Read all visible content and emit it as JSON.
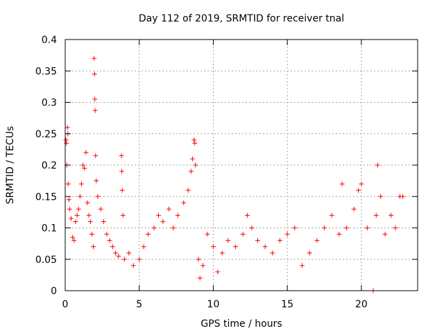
{
  "chart_data": {
    "type": "scatter",
    "title": "Day 112 of 2019, SRMTID for receiver tnal",
    "xlabel": "GPS time / hours",
    "ylabel": "SRMTID / TECUs",
    "xlim": [
      0,
      23.8
    ],
    "ylim": [
      0,
      0.4
    ],
    "x_ticks": [
      0,
      5,
      10,
      15,
      20
    ],
    "x_tick_labels": [
      "0",
      "5",
      "10",
      "15",
      "20"
    ],
    "y_ticks": [
      0,
      0.05,
      0.1,
      0.15,
      0.2,
      0.25,
      0.3,
      0.35,
      0.4
    ],
    "y_tick_labels": [
      "0",
      "0.05",
      "0.1",
      "0.15",
      "0.2",
      "0.25",
      "0.3",
      "0.35",
      "0.4"
    ],
    "grid": true,
    "legend": "none",
    "marker": "plus",
    "color": "#ff0000",
    "series": [
      {
        "values": [
          [
            0.05,
            0.24
          ],
          [
            0.08,
            0.235
          ],
          [
            0.1,
            0.2
          ],
          [
            0.15,
            0.26
          ],
          [
            0.18,
            0.25
          ],
          [
            0.2,
            0.17
          ],
          [
            0.25,
            0.145
          ],
          [
            0.3,
            0.13
          ],
          [
            0.4,
            0.115
          ],
          [
            0.5,
            0.085
          ],
          [
            0.6,
            0.08
          ],
          [
            0.7,
            0.11
          ],
          [
            0.8,
            0.12
          ],
          [
            0.9,
            0.13
          ],
          [
            1.0,
            0.15
          ],
          [
            1.1,
            0.17
          ],
          [
            1.2,
            0.2
          ],
          [
            1.3,
            0.195
          ],
          [
            1.4,
            0.22
          ],
          [
            1.5,
            0.14
          ],
          [
            1.6,
            0.12
          ],
          [
            1.7,
            0.11
          ],
          [
            1.8,
            0.09
          ],
          [
            1.9,
            0.07
          ],
          [
            1.95,
            0.37
          ],
          [
            1.98,
            0.345
          ],
          [
            2.0,
            0.305
          ],
          [
            2.02,
            0.287
          ],
          [
            2.05,
            0.215
          ],
          [
            2.1,
            0.175
          ],
          [
            2.2,
            0.15
          ],
          [
            2.4,
            0.13
          ],
          [
            2.6,
            0.11
          ],
          [
            2.8,
            0.09
          ],
          [
            3.0,
            0.08
          ],
          [
            3.2,
            0.07
          ],
          [
            3.4,
            0.06
          ],
          [
            3.6,
            0.055
          ],
          [
            3.8,
            0.215
          ],
          [
            3.82,
            0.19
          ],
          [
            3.85,
            0.16
          ],
          [
            3.9,
            0.12
          ],
          [
            4.0,
            0.05
          ],
          [
            4.3,
            0.06
          ],
          [
            4.6,
            0.04
          ],
          [
            5.0,
            0.05
          ],
          [
            5.3,
            0.07
          ],
          [
            5.6,
            0.09
          ],
          [
            6.0,
            0.1
          ],
          [
            6.3,
            0.12
          ],
          [
            6.6,
            0.11
          ],
          [
            7.0,
            0.13
          ],
          [
            7.3,
            0.1
          ],
          [
            7.6,
            0.12
          ],
          [
            8.0,
            0.14
          ],
          [
            8.3,
            0.16
          ],
          [
            8.5,
            0.19
          ],
          [
            8.6,
            0.21
          ],
          [
            8.7,
            0.24
          ],
          [
            8.75,
            0.235
          ],
          [
            8.8,
            0.2
          ],
          [
            9.0,
            0.05
          ],
          [
            9.1,
            0.02
          ],
          [
            9.3,
            0.04
          ],
          [
            9.6,
            0.09
          ],
          [
            10.0,
            0.07
          ],
          [
            10.3,
            0.03
          ],
          [
            10.6,
            0.06
          ],
          [
            11.0,
            0.08
          ],
          [
            11.5,
            0.07
          ],
          [
            12.0,
            0.09
          ],
          [
            12.3,
            0.12
          ],
          [
            12.6,
            0.1
          ],
          [
            13.0,
            0.08
          ],
          [
            13.5,
            0.07
          ],
          [
            14.0,
            0.06
          ],
          [
            14.5,
            0.08
          ],
          [
            15.0,
            0.09
          ],
          [
            15.5,
            0.1
          ],
          [
            16.0,
            0.04
          ],
          [
            16.5,
            0.06
          ],
          [
            17.0,
            0.08
          ],
          [
            17.5,
            0.1
          ],
          [
            18.0,
            0.12
          ],
          [
            18.5,
            0.09
          ],
          [
            18.7,
            0.17
          ],
          [
            19.0,
            0.1
          ],
          [
            19.5,
            0.13
          ],
          [
            19.8,
            0.16
          ],
          [
            20.0,
            0.17
          ],
          [
            20.4,
            0.1
          ],
          [
            20.8,
            0.0
          ],
          [
            21.0,
            0.12
          ],
          [
            21.1,
            0.2
          ],
          [
            21.3,
            0.15
          ],
          [
            21.6,
            0.09
          ],
          [
            22.0,
            0.12
          ],
          [
            22.3,
            0.1
          ],
          [
            22.6,
            0.15
          ],
          [
            22.8,
            0.15
          ]
        ]
      }
    ]
  }
}
